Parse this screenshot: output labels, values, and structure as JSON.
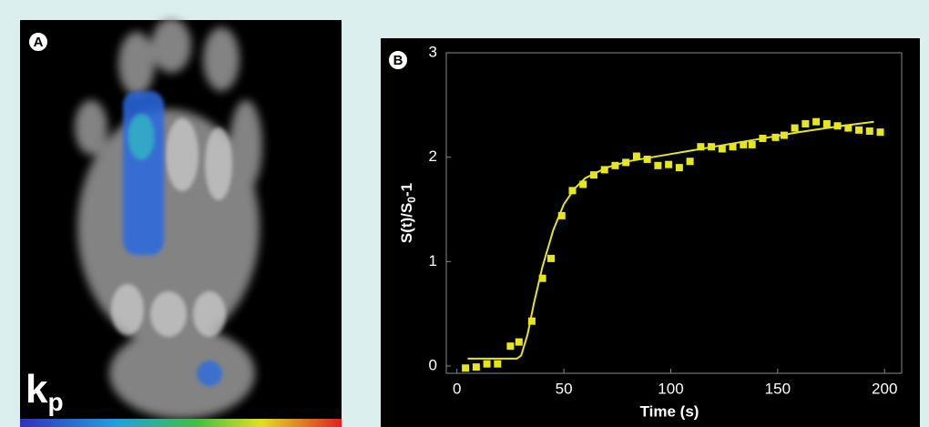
{
  "panel_a": {
    "label": "A",
    "overlay": "k",
    "overlay_sub": "p"
  },
  "chart_data": {
    "type": "scatter",
    "label": "B",
    "x_label": "Time (s)",
    "y_label": [
      "S(t)/S",
      "0",
      "-1"
    ],
    "xlim": [
      -5,
      208
    ],
    "ylim": [
      -0.07,
      3
    ],
    "xticks": [
      0,
      50,
      100,
      150,
      200
    ],
    "yticks": [
      0,
      1,
      2,
      3
    ],
    "series": [
      {
        "type": "scatter",
        "color": "#e6e620",
        "x": [
          4,
          9,
          14,
          19,
          25,
          29,
          35,
          40,
          44,
          49,
          54,
          59,
          64,
          69,
          74,
          79,
          84,
          89,
          94,
          99,
          104,
          109,
          114,
          119,
          124,
          129,
          134,
          138,
          143,
          149,
          153,
          158,
          163,
          168,
          173,
          178,
          183,
          188,
          193,
          198
        ],
        "values": [
          -0.02,
          -0.01,
          0.02,
          0.02,
          0.19,
          0.23,
          0.43,
          0.84,
          1.03,
          1.44,
          1.68,
          1.74,
          1.83,
          1.88,
          1.92,
          1.95,
          2.01,
          1.98,
          1.92,
          1.93,
          1.9,
          1.96,
          2.1,
          2.1,
          2.08,
          2.1,
          2.12,
          2.12,
          2.18,
          2.19,
          2.21,
          2.28,
          2.32,
          2.34,
          2.32,
          2.3,
          2.28,
          2.26,
          2.25,
          2.24
        ]
      },
      {
        "type": "line",
        "color": "#e6e620",
        "x": [
          5,
          28,
          30,
          33,
          36,
          40,
          45,
          50,
          55,
          60,
          70,
          80,
          100,
          120,
          140,
          160,
          180,
          195
        ],
        "values": [
          0.07,
          0.07,
          0.1,
          0.3,
          0.6,
          0.95,
          1.3,
          1.55,
          1.7,
          1.8,
          1.9,
          1.96,
          2.03,
          2.1,
          2.17,
          2.24,
          2.3,
          2.34
        ]
      }
    ]
  }
}
